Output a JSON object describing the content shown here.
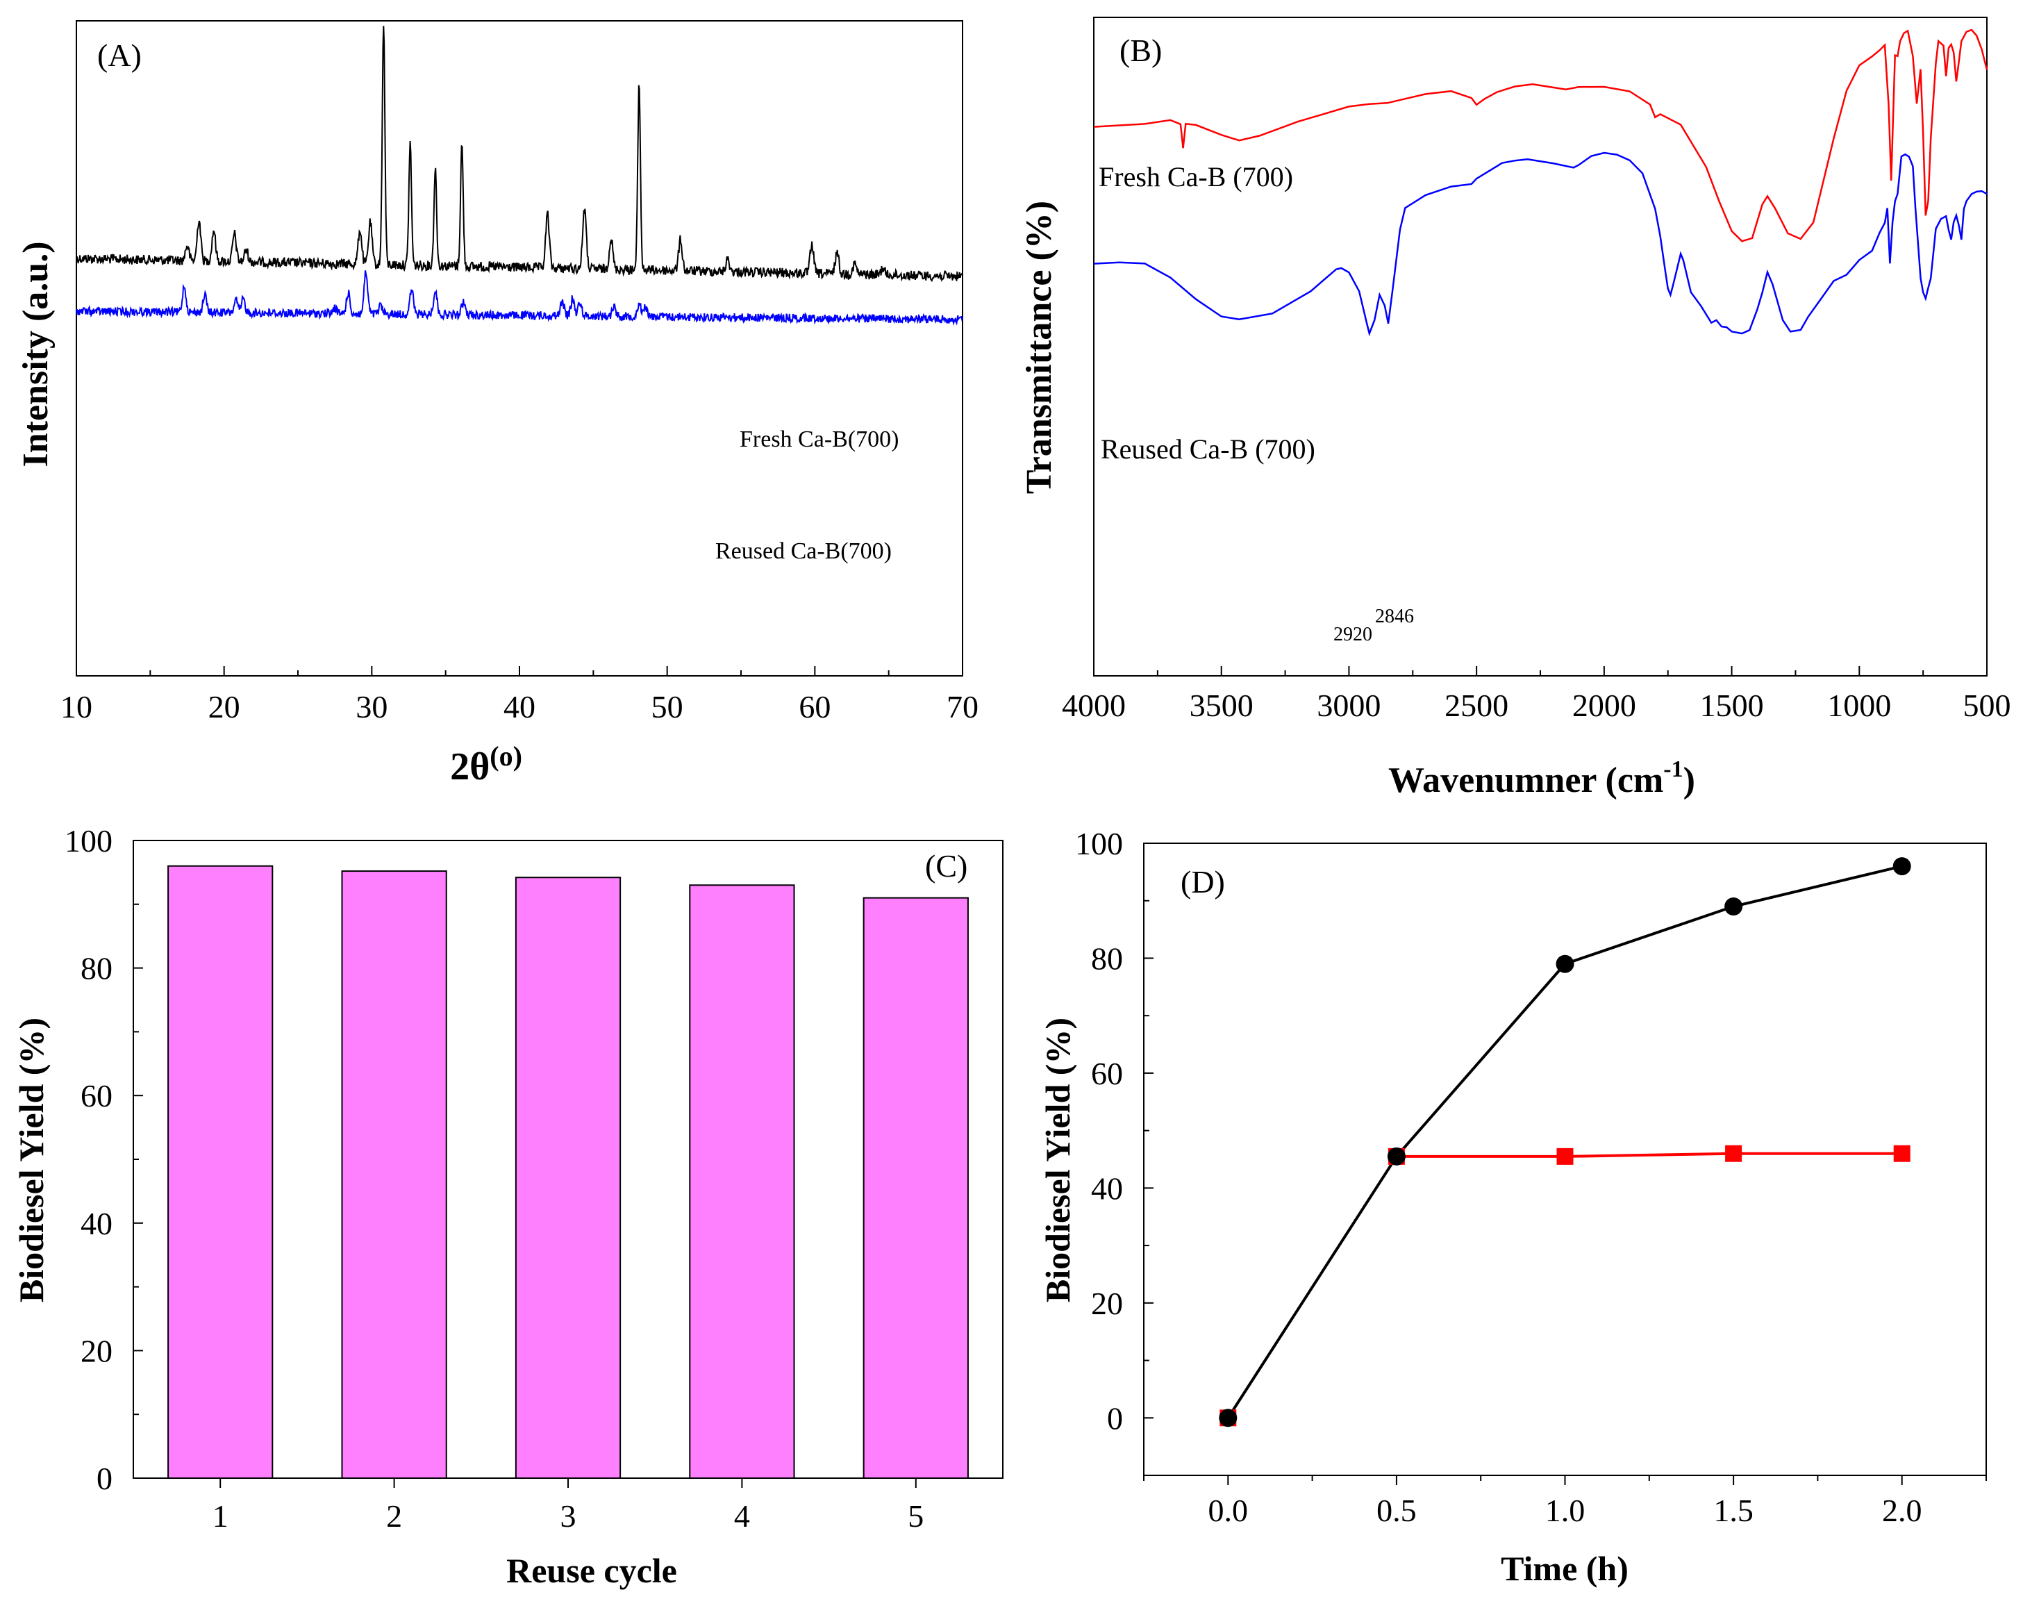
{
  "chart_data": [
    {
      "panel": "(A)",
      "type": "line",
      "xlabel": "2θ",
      "xlabel_unit": "(o)",
      "ylabel": "Intensity (a.u.)",
      "xlim": [
        10,
        70
      ],
      "x_ticks": [
        10,
        20,
        30,
        40,
        50,
        60,
        70
      ],
      "y_ticks_shown": false,
      "series": [
        {
          "name": "Fresh Ca-B(700)",
          "color": "#000000",
          "baseline": 372,
          "baseline_end": 398,
          "noise": 7,
          "peaks": [
            [
              17.5,
              22
            ],
            [
              18.3,
              60
            ],
            [
              19.3,
              45
            ],
            [
              20.7,
              40
            ],
            [
              21.5,
              18
            ],
            [
              29.2,
              50
            ],
            [
              29.9,
              60
            ],
            [
              30.8,
              345
            ],
            [
              32.6,
              175
            ],
            [
              34.3,
              140
            ],
            [
              36.1,
              175
            ],
            [
              41.9,
              78
            ],
            [
              44.4,
              88
            ],
            [
              46.2,
              45
            ],
            [
              48.1,
              268
            ],
            [
              50.9,
              45
            ],
            [
              54.1,
              18
            ],
            [
              59.8,
              42
            ],
            [
              61.5,
              32
            ],
            [
              62.7,
              15
            ],
            [
              64.6,
              10
            ]
          ]
        },
        {
          "name": "Reused Ca-B(700)",
          "color": "#0000ff",
          "baseline": 448,
          "baseline_end": 460,
          "noise": 6,
          "peaks": [
            [
              17.3,
              38
            ],
            [
              18.7,
              25
            ],
            [
              20.8,
              18
            ],
            [
              21.3,
              20
            ],
            [
              27.5,
              8
            ],
            [
              28.4,
              30
            ],
            [
              29.6,
              60
            ],
            [
              30.6,
              12
            ],
            [
              32.7,
              35
            ],
            [
              34.3,
              35
            ],
            [
              36.2,
              18
            ],
            [
              42.9,
              22
            ],
            [
              43.6,
              25
            ],
            [
              44.1,
              20
            ],
            [
              46.4,
              15
            ],
            [
              48.1,
              18
            ],
            [
              48.5,
              15
            ]
          ]
        }
      ]
    },
    {
      "panel": "(B)",
      "type": "line",
      "xlabel": "Wavenumner (cm",
      "xlabel_sup": "-1",
      "xlabel_close": ")",
      "ylabel": "Transmittance (%)",
      "xlim": [
        4000,
        500
      ],
      "x_ticks": [
        4000,
        3500,
        3000,
        2500,
        2000,
        1500,
        1000,
        500
      ],
      "y_ticks_shown": false,
      "annotations": [
        {
          "text": "2920",
          "x": 2920
        },
        {
          "text": "2846",
          "x": 2846
        }
      ],
      "series": [
        {
          "name": "Fresh Ca-B (700)",
          "color": "#ff0000",
          "points": [
            [
              4000,
              183
            ],
            [
              3800,
              178
            ],
            [
              3700,
              172
            ],
            [
              3660,
              178
            ],
            [
              3650,
              213
            ],
            [
              3640,
              178
            ],
            [
              3600,
              180
            ],
            [
              3500,
              195
            ],
            [
              3430,
              203
            ],
            [
              3350,
              195
            ],
            [
              3200,
              175
            ],
            [
              3000,
              153
            ],
            [
              2920,
              150
            ],
            [
              2850,
              148
            ],
            [
              2700,
              135
            ],
            [
              2600,
              132
            ],
            [
              2520,
              142
            ],
            [
              2500,
              150
            ],
            [
              2470,
              142
            ],
            [
              2420,
              132
            ],
            [
              2350,
              125
            ],
            [
              2280,
              122
            ],
            [
              2200,
              125
            ],
            [
              2150,
              128
            ],
            [
              2100,
              125
            ],
            [
              2000,
              125
            ],
            [
              1900,
              132
            ],
            [
              1820,
              150
            ],
            [
              1800,
              168
            ],
            [
              1780,
              165
            ],
            [
              1700,
              180
            ],
            [
              1600,
              240
            ],
            [
              1550,
              290
            ],
            [
              1500,
              332
            ],
            [
              1460,
              348
            ],
            [
              1420,
              342
            ],
            [
              1380,
              295
            ],
            [
              1360,
              282
            ],
            [
              1330,
              300
            ],
            [
              1280,
              335
            ],
            [
              1230,
              345
            ],
            [
              1180,
              320
            ],
            [
              1100,
              200
            ],
            [
              1050,
              130
            ],
            [
              1000,
              95
            ],
            [
              950,
              82
            ],
            [
              920,
              72
            ],
            [
              900,
              65
            ],
            [
              885,
              150
            ],
            [
              875,
              260
            ],
            [
              860,
              80
            ],
            [
              850,
              80
            ],
            [
              840,
              60
            ],
            [
              825,
              48
            ],
            [
              810,
              45
            ],
            [
              790,
              80
            ],
            [
              775,
              150
            ],
            [
              760,
              100
            ],
            [
              750,
              190
            ],
            [
              740,
              310
            ],
            [
              730,
              290
            ],
            [
              720,
              200
            ],
            [
              700,
              90
            ],
            [
              690,
              60
            ],
            [
              670,
              65
            ],
            [
              660,
              110
            ],
            [
              650,
              70
            ],
            [
              640,
              65
            ],
            [
              630,
              75
            ],
            [
              620,
              118
            ],
            [
              610,
              90
            ],
            [
              600,
              60
            ],
            [
              580,
              45
            ],
            [
              560,
              42
            ],
            [
              540,
              52
            ],
            [
              520,
              72
            ],
            [
              500,
              100
            ]
          ]
        },
        {
          "name": "Reused Ca-B (700)",
          "color": "#0000ff",
          "points": [
            [
              4000,
              380
            ],
            [
              3900,
              378
            ],
            [
              3800,
              380
            ],
            [
              3700,
              400
            ],
            [
              3600,
              430
            ],
            [
              3500,
              455
            ],
            [
              3430,
              460
            ],
            [
              3300,
              452
            ],
            [
              3150,
              420
            ],
            [
              3050,
              388
            ],
            [
              3030,
              385
            ],
            [
              3000,
              392
            ],
            [
              2960,
              420
            ],
            [
              2930,
              465
            ],
            [
              2920,
              480
            ],
            [
              2900,
              460
            ],
            [
              2880,
              425
            ],
            [
              2860,
              440
            ],
            [
              2846,
              465
            ],
            [
              2830,
              420
            ],
            [
              2800,
              330
            ],
            [
              2780,
              300
            ],
            [
              2700,
              280
            ],
            [
              2600,
              268
            ],
            [
              2520,
              265
            ],
            [
              2500,
              258
            ],
            [
              2400,
              235
            ],
            [
              2350,
              232
            ],
            [
              2300,
              230
            ],
            [
              2200,
              235
            ],
            [
              2120,
              242
            ],
            [
              2100,
              238
            ],
            [
              2050,
              225
            ],
            [
              2000,
              220
            ],
            [
              1950,
              222
            ],
            [
              1900,
              230
            ],
            [
              1850,
              250
            ],
            [
              1800,
              300
            ],
            [
              1780,
              340
            ],
            [
              1760,
              390
            ],
            [
              1750,
              415
            ],
            [
              1740,
              425
            ],
            [
              1730,
              410
            ],
            [
              1700,
              365
            ],
            [
              1690,
              375
            ],
            [
              1660,
              420
            ],
            [
              1620,
              440
            ],
            [
              1580,
              465
            ],
            [
              1560,
              460
            ],
            [
              1540,
              470
            ],
            [
              1520,
              472
            ],
            [
              1500,
              478
            ],
            [
              1460,
              480
            ],
            [
              1430,
              475
            ],
            [
              1400,
              445
            ],
            [
              1380,
              420
            ],
            [
              1360,
              392
            ],
            [
              1340,
              410
            ],
            [
              1300,
              460
            ],
            [
              1270,
              478
            ],
            [
              1230,
              475
            ],
            [
              1200,
              455
            ],
            [
              1150,
              430
            ],
            [
              1100,
              405
            ],
            [
              1050,
              395
            ],
            [
              1000,
              375
            ],
            [
              950,
              360
            ],
            [
              920,
              335
            ],
            [
              900,
              320
            ],
            [
              890,
              300
            ],
            [
              880,
              380
            ],
            [
              870,
              320
            ],
            [
              860,
              290
            ],
            [
              850,
              280
            ],
            [
              835,
              225
            ],
            [
              820,
              222
            ],
            [
              805,
              225
            ],
            [
              790,
              240
            ],
            [
              780,
              300
            ],
            [
              770,
              350
            ],
            [
              760,
              400
            ],
            [
              750,
              420
            ],
            [
              740,
              430
            ],
            [
              730,
              415
            ],
            [
              720,
              400
            ],
            [
              700,
              330
            ],
            [
              680,
              315
            ],
            [
              660,
              312
            ],
            [
              650,
              330
            ],
            [
              640,
              345
            ],
            [
              630,
              320
            ],
            [
              620,
              310
            ],
            [
              610,
              325
            ],
            [
              600,
              345
            ],
            [
              590,
              300
            ],
            [
              580,
              290
            ],
            [
              560,
              280
            ],
            [
              540,
              275
            ],
            [
              520,
              275
            ],
            [
              500,
              280
            ]
          ]
        }
      ]
    },
    {
      "panel": "(C)",
      "type": "bar",
      "xlabel": "Reuse cycle",
      "ylabel": "Biodiesel Yield (%)",
      "categories": [
        "1",
        "2",
        "3",
        "4",
        "5"
      ],
      "values": [
        96,
        95.2,
        94.2,
        93,
        91
      ],
      "ylim": [
        0,
        100
      ],
      "y_ticks": [
        0,
        20,
        40,
        60,
        80,
        100
      ],
      "color": "#ff80ff"
    },
    {
      "panel": "(D)",
      "type": "line",
      "xlabel": "Time (h)",
      "ylabel": "Biodiesel Yield (%)",
      "xlim": [
        -0.25,
        2.25
      ],
      "ylim": [
        -10,
        100
      ],
      "x_ticks": [
        "0.0",
        "0.5",
        "1.0",
        "1.5",
        "2.0"
      ],
      "y_ticks": [
        0,
        20,
        40,
        60,
        80,
        100
      ],
      "series": [
        {
          "name": "black circles",
          "marker": "circle",
          "color": "#000000",
          "x": [
            0,
            0.5,
            1.0,
            1.5,
            2.0
          ],
          "y": [
            0,
            45.5,
            79,
            89,
            96
          ]
        },
        {
          "name": "red squares",
          "marker": "square",
          "color": "#ff0000",
          "x": [
            0,
            0.5,
            1.0,
            1.5,
            2.0
          ],
          "y": [
            0,
            45.5,
            45.5,
            46,
            46
          ]
        }
      ]
    }
  ]
}
